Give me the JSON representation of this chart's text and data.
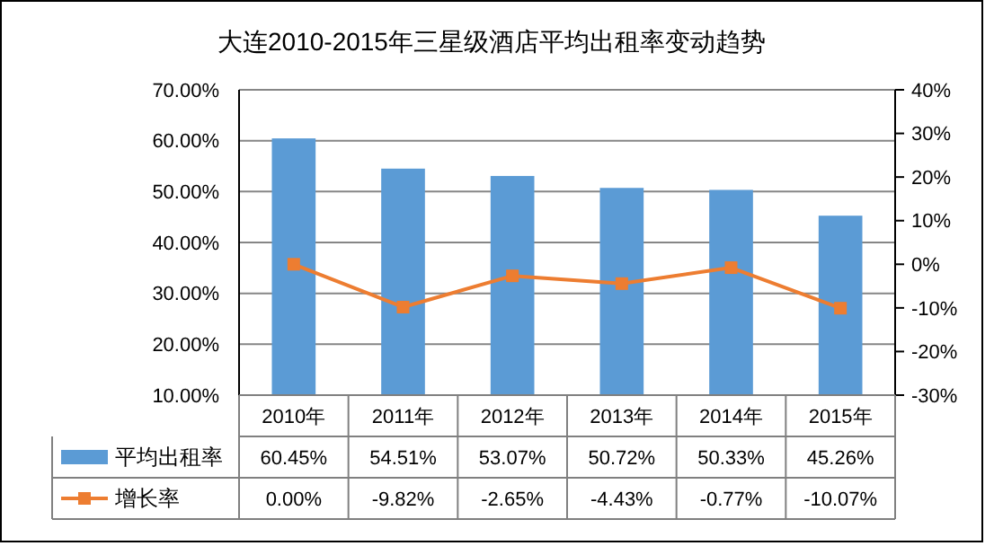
{
  "chart_data": {
    "type": "bar",
    "title": "大连2010-2015年三星级酒店平均出租率变动趋势",
    "categories": [
      "2010年",
      "2011年",
      "2012年",
      "2013年",
      "2014年",
      "2015年"
    ],
    "series": [
      {
        "name": "平均出租率",
        "color": "#5b9bd5",
        "values": [
          60.45,
          54.51,
          53.07,
          50.72,
          50.33,
          45.26
        ],
        "value_labels": [
          "60.45%",
          "54.51%",
          "53.07%",
          "50.72%",
          "50.33%",
          "45.26%"
        ]
      },
      {
        "name": "增长率",
        "type": "line",
        "axis": "y2",
        "color": "#ed7d31",
        "marker": "square",
        "values": [
          0,
          -9.82,
          -2.65,
          -4.43,
          -0.77,
          -10.07
        ],
        "value_labels": [
          "0.00%",
          "-9.82%",
          "-2.65%",
          "-4.43%",
          "-0.77%",
          "-10.07%"
        ]
      }
    ],
    "ylim": [
      10,
      70
    ],
    "yticks": [
      {
        "value": 10,
        "label": "10.00%"
      },
      {
        "value": 20,
        "label": "20.00%"
      },
      {
        "value": 30,
        "label": "30.00%"
      },
      {
        "value": 40,
        "label": "40.00%"
      },
      {
        "value": 50,
        "label": "50.00%"
      },
      {
        "value": 60,
        "label": "60.00%"
      },
      {
        "value": 70,
        "label": "70.00%"
      }
    ],
    "y2lim": [
      -30,
      40
    ],
    "y2ticks": [
      {
        "value": -30,
        "label": "-30%"
      },
      {
        "value": -20,
        "label": "-20%"
      },
      {
        "value": -10,
        "label": "-10%"
      },
      {
        "value": 0,
        "label": "0%"
      },
      {
        "value": 10,
        "label": "10%"
      },
      {
        "value": 20,
        "label": "20%"
      },
      {
        "value": 30,
        "label": "30%"
      },
      {
        "value": 40,
        "label": "40%"
      }
    ],
    "grid": "y",
    "legend": "bottom left"
  }
}
